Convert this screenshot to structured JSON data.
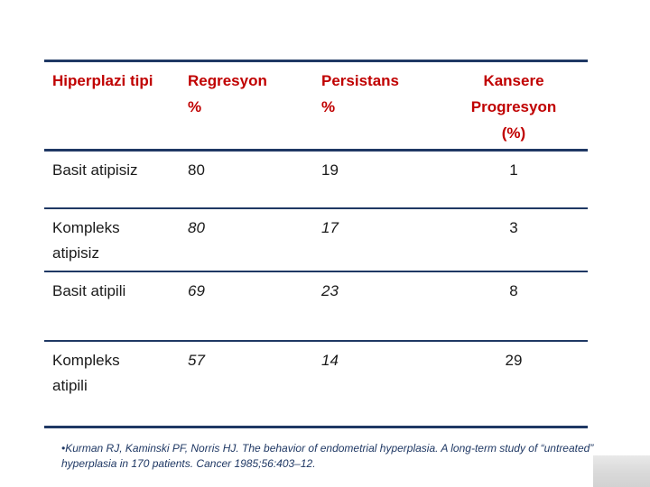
{
  "slide": {
    "table": {
      "header": {
        "type_col": "Hiperplazi tipi",
        "regresyon_col": "Regresyon\n%",
        "persistans_col": "Persistans\n%",
        "kansere_col": "Kansere\nProgresyon\n(%)"
      },
      "rows": [
        {
          "type": "Basit atipisiz",
          "regresyon": "80",
          "persistans": "19",
          "kansere": "1"
        },
        {
          "type": "Kompleks\natipisiz",
          "regresyon": "80",
          "persistans": "17",
          "kansere": "3"
        },
        {
          "type": "Basit atipili",
          "regresyon": "69",
          "persistans": "23",
          "kansere": "8"
        },
        {
          "type": "Kompleks\natipili",
          "regresyon": "57",
          "persistans": "14",
          "kansere": "29"
        }
      ]
    },
    "footnote": "•Kurman RJ, Kaminski PF, Norris HJ. The behavior of endometrial hyperplasia. A long-term study of “untreated”\nhyperplasia in 170 patients. Cancer 1985;56:403–12.",
    "colors": {
      "header_text": "#C00000",
      "table_border": "#1F3864",
      "body_text": "#1a1a1a",
      "footnote_text": "#1F3864",
      "watermark_gray": "#d9d9d9",
      "background": "#ffffff"
    }
  }
}
